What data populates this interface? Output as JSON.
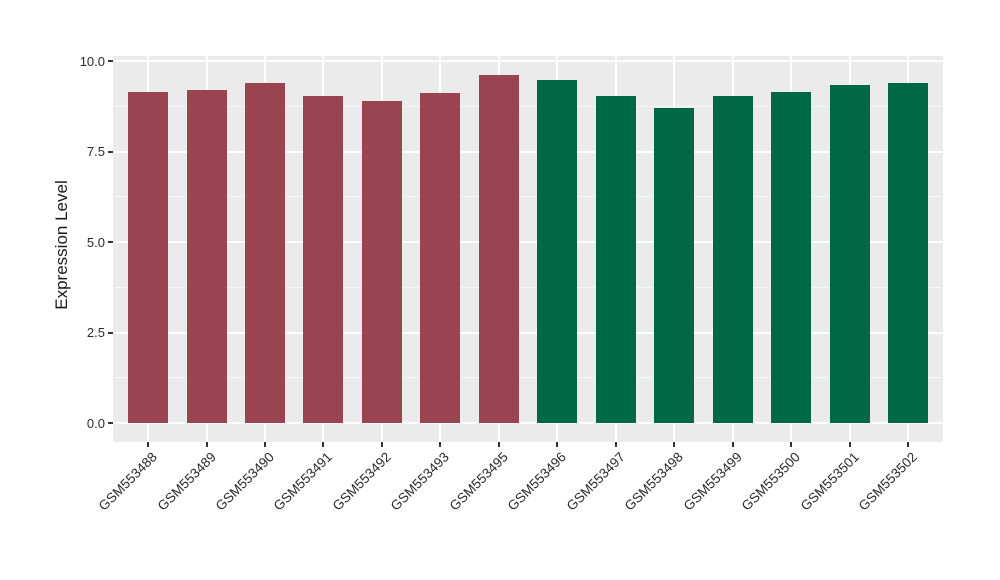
{
  "chart_data": {
    "type": "bar",
    "title": "",
    "xlabel": "",
    "ylabel": "Expression Level",
    "categories": [
      "GSM553488",
      "GSM553489",
      "GSM553490",
      "GSM553491",
      "GSM553492",
      "GSM553493",
      "GSM553495",
      "GSM553496",
      "GSM553497",
      "GSM553498",
      "GSM553499",
      "GSM553500",
      "GSM553501",
      "GSM553502"
    ],
    "values": [
      9.15,
      9.21,
      9.39,
      9.03,
      8.9,
      9.12,
      9.6,
      9.47,
      9.03,
      8.69,
      9.04,
      9.15,
      9.33,
      9.4
    ],
    "bar_colors": [
      "#9A4351",
      "#9A4351",
      "#9A4351",
      "#9A4351",
      "#9A4351",
      "#9A4351",
      "#9A4351",
      "#016846",
      "#016846",
      "#016846",
      "#016846",
      "#016846",
      "#016846",
      "#016846"
    ],
    "ylim": [
      0,
      10
    ],
    "yticks": [
      0,
      2.5,
      5,
      7.5,
      10
    ],
    "ytick_labels": [
      "0.0",
      "2.5",
      "5.0",
      "7.5",
      "10.0"
    ],
    "y_minor_ticks": [
      1.25,
      3.75,
      6.25,
      8.75
    ],
    "grid": "on",
    "legend": "none",
    "x_label_angle_deg": 45
  },
  "styles": {
    "figure_bg": "#FFFFFF",
    "panel_bg": "#EBEBEB",
    "grid_major_color": "#FFFFFF",
    "grid_minor_color": "#F7F7F7",
    "axis_text_color": "#2B2B2B",
    "axis_title_color": "#1A1A1A",
    "tick_mark_color": "#333333"
  }
}
